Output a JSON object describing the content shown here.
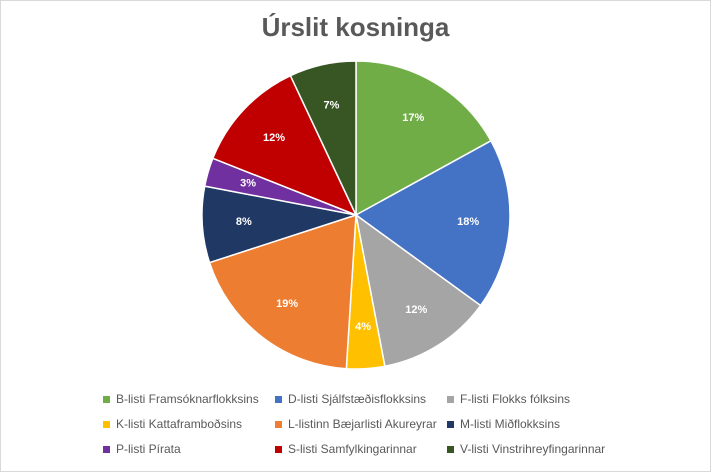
{
  "chart_data": {
    "type": "pie",
    "title": "Úrslit kosninga",
    "legend_position": "bottom",
    "slices": [
      {
        "label": "B-listi Framsóknarflokksins",
        "value": 17,
        "value_label": "17%",
        "color": "#70AD47"
      },
      {
        "label": "D-listi Sjálfstæðisflokksins",
        "value": 18,
        "value_label": "18%",
        "color": "#4472C4"
      },
      {
        "label": "F-listi Flokks fólksins",
        "value": 12,
        "value_label": "12%",
        "color": "#A5A5A5"
      },
      {
        "label": "K-listi Kattaframboðsins",
        "value": 4,
        "value_label": "4%",
        "color": "#FFC000"
      },
      {
        "label": "L-listinn Bæjarlisti Akureyrar",
        "value": 19,
        "value_label": "19%",
        "color": "#ED7D31"
      },
      {
        "label": "M-listi Miðflokksins",
        "value": 8,
        "value_label": "8%",
        "color": "#203864"
      },
      {
        "label": "P-listi Pírata",
        "value": 3,
        "value_label": "3%",
        "color": "#7030A0"
      },
      {
        "label": "S-listi Samfylkingarinnar",
        "value": 12,
        "value_label": "12%",
        "color": "#C00000"
      },
      {
        "label": "V-listi Vinstrihreyfingarinnar",
        "value": 7,
        "value_label": "7%",
        "color": "#375623"
      }
    ],
    "legend_order": [
      "B-listi Framsóknarflokksins",
      "D-listi Sjálfstæðisflokksins",
      "F-listi Flokks fólksins",
      "K-listi Kattaframboðsins",
      "L-listinn Bæjarlisti Akureyrar",
      "M-listi Miðflokksins",
      "P-listi Pírata",
      "S-listi Samfylkingarinnar",
      "V-listi Vinstrihreyfingarinnar"
    ]
  }
}
